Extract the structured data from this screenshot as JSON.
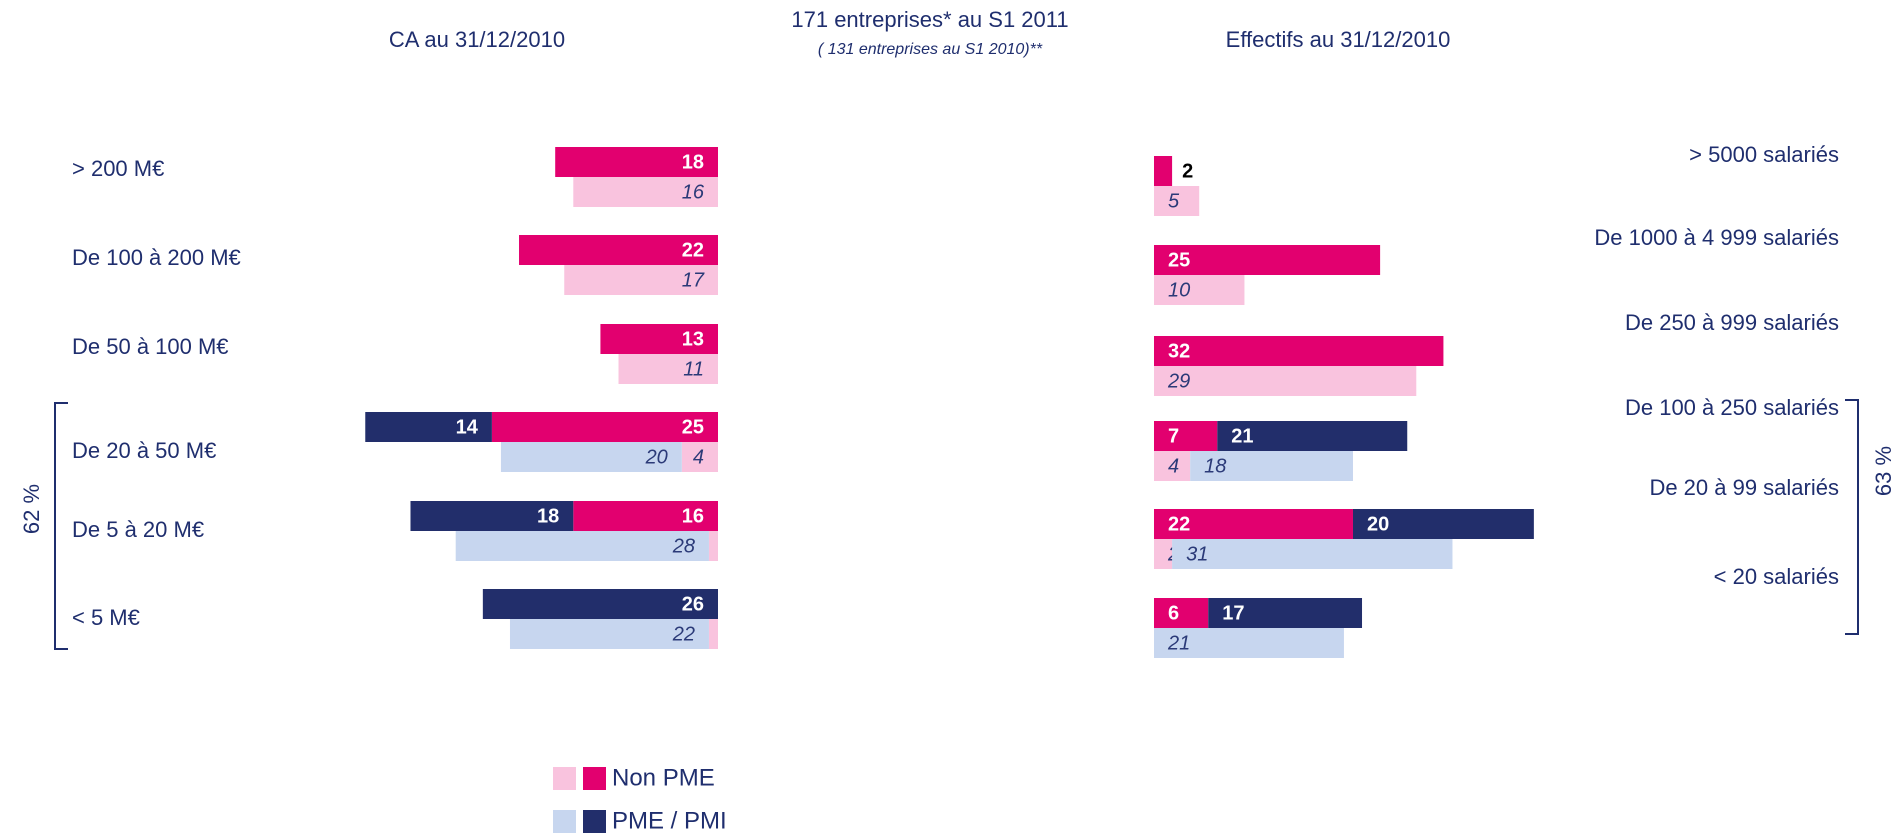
{
  "title": "171 entreprises* au S1 2011",
  "subtitle": "( 131 entreprises au S1 2010)**",
  "legend": [
    {
      "name": "Non PME",
      "color_2010": "#f9c3de",
      "color": "#e2006f"
    },
    {
      "name": "PME / PMI",
      "color_2010": "#c7d6ef",
      "color": "#222e6b"
    }
  ],
  "chart_data": [
    {
      "type": "bar",
      "orientation": "horizontal",
      "direction": "left",
      "title": "CA au 31/12/2010",
      "categories": [
        "> 200 M€",
        "De 100 à 200 M€",
        "De 50 à 100 M€",
        "De 20 à 50 M€",
        "De 5 à 20 M€",
        "< 5 M€"
      ],
      "xlim": [
        0,
        45
      ],
      "bracket_label": "62 %",
      "series": [
        {
          "legend": 0,
          "values": [
            18,
            22,
            13,
            25,
            16,
            null
          ],
          "values_2010": [
            16,
            17,
            11,
            4,
            1,
            1
          ]
        },
        {
          "legend": 1,
          "values": [
            null,
            null,
            null,
            14,
            18,
            26
          ],
          "values_2010": [
            null,
            null,
            null,
            20,
            28,
            22
          ]
        }
      ]
    },
    {
      "type": "bar",
      "orientation": "horizontal",
      "direction": "right",
      "title": "Effectifs au 31/12/2010",
      "categories": [
        "> 5000 salariés",
        "De 1000 à 4 999 salariés",
        "De 250 à 999 salariés",
        "De 100 à 250 salariés",
        "De 20 à 99 salariés",
        "< 20 salariés"
      ],
      "xlim": [
        0,
        45
      ],
      "bracket_label": "63 %",
      "series": [
        {
          "legend": 0,
          "values": [
            2,
            25,
            32,
            7,
            22,
            6
          ],
          "values_2010": [
            5,
            10,
            29,
            4,
            2,
            null
          ]
        },
        {
          "legend": 1,
          "values": [
            null,
            null,
            null,
            21,
            20,
            17
          ],
          "values_2010": [
            null,
            null,
            null,
            18,
            31,
            21
          ]
        }
      ]
    }
  ]
}
